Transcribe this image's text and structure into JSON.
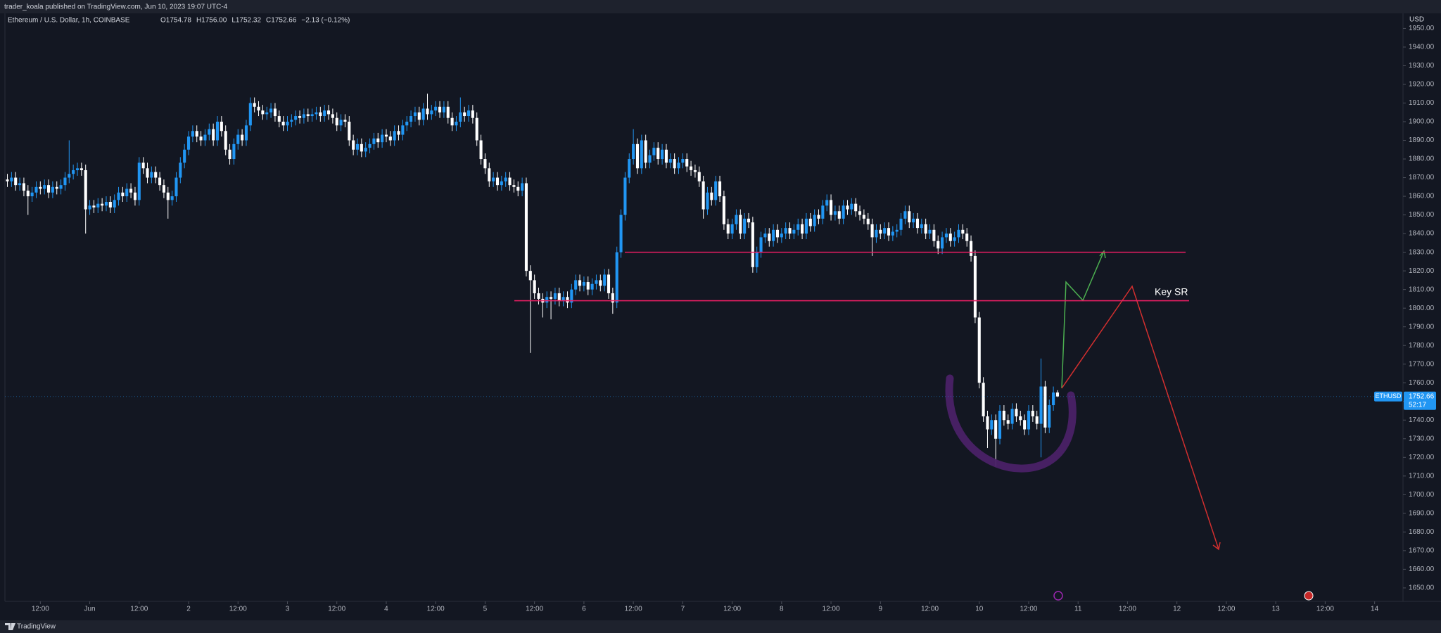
{
  "header": {
    "publisher": "trader_koala published on TradingView.com, Jun 10, 2023 19:07 UTC-4"
  },
  "footer": {
    "brand": "TradingView"
  },
  "chart_data": {
    "type": "candlestick",
    "title": "Ethereum / U.S. Dollar, 1h, COINBASE",
    "ohlc_legend": [
      "O1754.78",
      "H1756.00",
      "L1752.32",
      "C1752.66",
      "−2.13 (−0.12%)"
    ],
    "currency": "USD",
    "symbol": "ETHUSD",
    "last_price": 1752.66,
    "countdown": "52:17",
    "annotation": "Key SR",
    "levels": [
      1830,
      1804
    ],
    "level_color": "#e91e63",
    "up_color": "#2196f3",
    "down_color": "#ffffff",
    "x": [
      3,
      4,
      5,
      6,
      7,
      8,
      9,
      10,
      11,
      12,
      13,
      14,
      15,
      16,
      17,
      18,
      19,
      20,
      21,
      22,
      23,
      24,
      25,
      26,
      27,
      28,
      29,
      30,
      31,
      32,
      33,
      34,
      35,
      36,
      37,
      38,
      39,
      40,
      41,
      42,
      43,
      44,
      45,
      46,
      47,
      48,
      49,
      50,
      51,
      52,
      53,
      54,
      55,
      56,
      57,
      58,
      59,
      60,
      61,
      62,
      63,
      64,
      65,
      66,
      67,
      68,
      69,
      70,
      71,
      72,
      73,
      74,
      75,
      76,
      77,
      78,
      79,
      80,
      81,
      82,
      83,
      84,
      85,
      86,
      87,
      88,
      89,
      90,
      91,
      92,
      93,
      94,
      95,
      96,
      97,
      98,
      99,
      100,
      101,
      102,
      103,
      104,
      105,
      106,
      107,
      108,
      109,
      110,
      111,
      112,
      113,
      114,
      115,
      116,
      117,
      118,
      119,
      120,
      121,
      122,
      123,
      124,
      125,
      126,
      127,
      128,
      129,
      130,
      131,
      132,
      133,
      134,
      135,
      136,
      137,
      138,
      139,
      140,
      141,
      142,
      143,
      144,
      145,
      146,
      147,
      148,
      149,
      150,
      151,
      152,
      153,
      154,
      155,
      156,
      157,
      158,
      159,
      160,
      161,
      162,
      163,
      164,
      165,
      166,
      167,
      168,
      169,
      170,
      171,
      172,
      173,
      174,
      175,
      176,
      177,
      178,
      179,
      180,
      181,
      182,
      183,
      184,
      185,
      186,
      187,
      188,
      189,
      190,
      191,
      192,
      193,
      194,
      195,
      196,
      197,
      198,
      199,
      200,
      201,
      202,
      203,
      204,
      205,
      206,
      207,
      208,
      209,
      210,
      211,
      212,
      213,
      214,
      215,
      216,
      217,
      218,
      219,
      220,
      221,
      222,
      223,
      224,
      225,
      226,
      227,
      228,
      229,
      230,
      231,
      232,
      233,
      234,
      235,
      236,
      237,
      238,
      239,
      240,
      241,
      242,
      243,
      244,
      245,
      246,
      247,
      248,
      249,
      250,
      251,
      252,
      253,
      254,
      255,
      256,
      257,
      258,
      259
    ],
    "open": [
      1870,
      1869,
      1868,
      1870,
      1866,
      1867,
      1863,
      1860,
      1862,
      1865,
      1864,
      1866,
      1862,
      1865,
      1864,
      1866,
      1870,
      1872,
      1874,
      1875,
      1874,
      1853,
      1855,
      1854,
      1856,
      1855,
      1857,
      1854,
      1858,
      1862,
      1860,
      1864,
      1862,
      1858,
      1878,
      1875,
      1870,
      1873,
      1870,
      1866,
      1862,
      1858,
      1860,
      1870,
      1878,
      1885,
      1892,
      1895,
      1892,
      1890,
      1893,
      1896,
      1890,
      1900,
      1895,
      1885,
      1880,
      1888,
      1893,
      1890,
      1898,
      1910,
      1908,
      1906,
      1904,
      1905,
      1907,
      1903,
      1900,
      1898,
      1900,
      1901,
      1903,
      1902,
      1904,
      1903,
      1904,
      1905,
      1903,
      1906,
      1904,
      1902,
      1898,
      1901,
      1900,
      1890,
      1885,
      1888,
      1884,
      1886,
      1888,
      1891,
      1889,
      1893,
      1892,
      1890,
      1895,
      1893,
      1898,
      1900,
      1903,
      1905,
      1901,
      1907,
      1904,
      1906,
      1908,
      1905,
      1908,
      1902,
      1898,
      1900,
      1905,
      1903,
      1906,
      1902,
      1890,
      1880,
      1875,
      1868,
      1870,
      1866,
      1868,
      1870,
      1866,
      1865,
      1863,
      1867,
      1820,
      1815,
      1808,
      1805,
      1803,
      1806,
      1805,
      1808,
      1804,
      1806,
      1803,
      1810,
      1815,
      1812,
      1814,
      1810,
      1813,
      1815,
      1812,
      1818,
      1808,
      1803,
      1830,
      1850,
      1870,
      1880,
      1888,
      1875,
      1890,
      1878,
      1882,
      1886,
      1880,
      1885,
      1878,
      1880,
      1875,
      1878,
      1880,
      1876,
      1874,
      1873,
      1868,
      1853,
      1862,
      1858,
      1868,
      1860,
      1845,
      1840,
      1845,
      1850,
      1840,
      1848,
      1846,
      1822,
      1830,
      1838,
      1840,
      1836,
      1842,
      1838,
      1840,
      1843,
      1840,
      1842,
      1845,
      1840,
      1848,
      1844,
      1850,
      1848,
      1855,
      1858,
      1850,
      1852,
      1848,
      1855,
      1853,
      1856,
      1852,
      1850,
      1848,
      1845,
      1838,
      1842,
      1840,
      1843,
      1839,
      1841,
      1842,
      1848,
      1852,
      1846,
      1848,
      1843,
      1845,
      1840,
      1842,
      1836,
      1832,
      1838,
      1840,
      1836,
      1838,
      1842,
      1840,
      1836,
      1828,
      1795,
      1760,
      1742,
      1735,
      1740,
      1730,
      1745,
      1740,
      1738,
      1746,
      1742,
      1740,
      1735,
      1745,
      1742,
      1738,
      1758,
      1736,
      1748,
      1754.78
    ],
    "high": [
      1873,
      1872,
      1873,
      1873,
      1870,
      1870,
      1866,
      1865,
      1868,
      1868,
      1869,
      1869,
      1868,
      1868,
      1869,
      1873,
      1890,
      1877,
      1878,
      1878,
      1877,
      1858,
      1858,
      1859,
      1859,
      1860,
      1860,
      1861,
      1865,
      1865,
      1867,
      1867,
      1865,
      1881,
      1881,
      1878,
      1876,
      1876,
      1873,
      1869,
      1865,
      1863,
      1873,
      1881,
      1888,
      1895,
      1898,
      1898,
      1895,
      1896,
      1899,
      1899,
      1903,
      1903,
      1898,
      1888,
      1891,
      1896,
      1896,
      1901,
      1913,
      1913,
      1911,
      1909,
      1908,
      1910,
      1910,
      1906,
      1903,
      1903,
      1904,
      1906,
      1906,
      1907,
      1907,
      1907,
      1908,
      1908,
      1909,
      1909,
      1907,
      1905,
      1904,
      1904,
      1903,
      1893,
      1891,
      1891,
      1889,
      1891,
      1894,
      1894,
      1896,
      1896,
      1895,
      1898,
      1898,
      1901,
      1903,
      1906,
      1908,
      1908,
      1910,
      1915,
      1909,
      1911,
      1911,
      1911,
      1911,
      1905,
      1903,
      1913,
      1908,
      1909,
      1909,
      1905,
      1893,
      1883,
      1878,
      1873,
      1873,
      1871,
      1873,
      1873,
      1869,
      1868,
      1870,
      1870,
      1823,
      1818,
      1811,
      1808,
      1809,
      1809,
      1811,
      1811,
      1809,
      1809,
      1813,
      1818,
      1818,
      1817,
      1817,
      1816,
      1818,
      1818,
      1821,
      1821,
      1811,
      1833,
      1853,
      1873,
      1883,
      1896,
      1891,
      1893,
      1893,
      1885,
      1889,
      1889,
      1888,
      1888,
      1883,
      1883,
      1881,
      1883,
      1883,
      1879,
      1877,
      1876,
      1871,
      1865,
      1865,
      1871,
      1871,
      1863,
      1848,
      1848,
      1853,
      1853,
      1851,
      1851,
      1849,
      1833,
      1841,
      1843,
      1843,
      1845,
      1845,
      1843,
      1846,
      1846,
      1845,
      1848,
      1848,
      1851,
      1851,
      1853,
      1853,
      1858,
      1861,
      1861,
      1855,
      1855,
      1858,
      1858,
      1859,
      1859,
      1855,
      1853,
      1851,
      1848,
      1845,
      1845,
      1846,
      1846,
      1844,
      1845,
      1851,
      1855,
      1855,
      1851,
      1851,
      1848,
      1848,
      1845,
      1845,
      1839,
      1841,
      1843,
      1843,
      1841,
      1845,
      1845,
      1843,
      1839,
      1831,
      1798,
      1763,
      1745,
      1743,
      1743,
      1748,
      1748,
      1743,
      1749,
      1749,
      1745,
      1743,
      1748,
      1748,
      1745,
      1773,
      1761,
      1751,
      1758,
      1756
    ],
    "low": [
      1866,
      1865,
      1865,
      1863,
      1863,
      1860,
      1850,
      1857,
      1859,
      1861,
      1861,
      1859,
      1859,
      1861,
      1861,
      1863,
      1867,
      1869,
      1871,
      1871,
      1840,
      1850,
      1851,
      1851,
      1852,
      1852,
      1851,
      1851,
      1855,
      1857,
      1857,
      1859,
      1855,
      1855,
      1872,
      1867,
      1867,
      1867,
      1863,
      1859,
      1848,
      1855,
      1857,
      1867,
      1875,
      1882,
      1889,
      1889,
      1887,
      1887,
      1890,
      1887,
      1887,
      1892,
      1882,
      1877,
      1877,
      1885,
      1887,
      1887,
      1895,
      1905,
      1903,
      1901,
      1901,
      1902,
      1900,
      1897,
      1895,
      1895,
      1897,
      1898,
      1899,
      1899,
      1900,
      1900,
      1901,
      1900,
      1900,
      1901,
      1899,
      1895,
      1895,
      1897,
      1887,
      1882,
      1882,
      1881,
      1881,
      1883,
      1885,
      1886,
      1886,
      1889,
      1887,
      1887,
      1890,
      1890,
      1895,
      1897,
      1900,
      1898,
      1898,
      1901,
      1901,
      1903,
      1902,
      1902,
      1899,
      1895,
      1895,
      1897,
      1900,
      1900,
      1899,
      1887,
      1877,
      1872,
      1865,
      1865,
      1863,
      1863,
      1865,
      1863,
      1862,
      1860,
      1860,
      1817,
      1776,
      1805,
      1802,
      1795,
      1800,
      1794,
      1802,
      1801,
      1801,
      1800,
      1800,
      1807,
      1809,
      1809,
      1807,
      1807,
      1810,
      1809,
      1809,
      1805,
      1797,
      1800,
      1827,
      1847,
      1867,
      1877,
      1872,
      1872,
      1875,
      1875,
      1879,
      1877,
      1877,
      1875,
      1875,
      1872,
      1872,
      1875,
      1873,
      1871,
      1870,
      1865,
      1848,
      1850,
      1855,
      1855,
      1857,
      1842,
      1837,
      1837,
      1842,
      1837,
      1837,
      1843,
      1819,
      1819,
      1827,
      1835,
      1833,
      1833,
      1835,
      1835,
      1837,
      1837,
      1837,
      1839,
      1837,
      1837,
      1841,
      1841,
      1845,
      1845,
      1852,
      1847,
      1847,
      1845,
      1845,
      1850,
      1850,
      1849,
      1847,
      1845,
      1842,
      1828,
      1835,
      1837,
      1837,
      1836,
      1836,
      1838,
      1839,
      1845,
      1843,
      1843,
      1840,
      1840,
      1837,
      1837,
      1833,
      1829,
      1829,
      1835,
      1833,
      1833,
      1835,
      1837,
      1833,
      1825,
      1792,
      1757,
      1739,
      1725,
      1732,
      1715,
      1727,
      1737,
      1735,
      1735,
      1739,
      1737,
      1732,
      1732,
      1739,
      1735,
      1720,
      1733,
      1733,
      1745,
      1752.32
    ],
    "close": [
      1869,
      1868,
      1870,
      1866,
      1867,
      1863,
      1860,
      1862,
      1865,
      1864,
      1866,
      1862,
      1865,
      1864,
      1866,
      1870,
      1872,
      1874,
      1875,
      1874,
      1853,
      1855,
      1854,
      1856,
      1855,
      1857,
      1854,
      1858,
      1862,
      1860,
      1864,
      1862,
      1858,
      1878,
      1875,
      1870,
      1873,
      1870,
      1866,
      1862,
      1858,
      1860,
      1870,
      1878,
      1885,
      1892,
      1895,
      1892,
      1890,
      1893,
      1896,
      1890,
      1900,
      1895,
      1885,
      1880,
      1888,
      1893,
      1890,
      1898,
      1910,
      1908,
      1906,
      1904,
      1905,
      1907,
      1903,
      1900,
      1898,
      1900,
      1901,
      1903,
      1902,
      1904,
      1903,
      1904,
      1905,
      1903,
      1906,
      1904,
      1902,
      1898,
      1901,
      1900,
      1890,
      1885,
      1888,
      1884,
      1886,
      1888,
      1891,
      1889,
      1893,
      1892,
      1890,
      1895,
      1893,
      1898,
      1900,
      1903,
      1905,
      1901,
      1907,
      1904,
      1906,
      1908,
      1905,
      1908,
      1902,
      1898,
      1900,
      1905,
      1903,
      1906,
      1902,
      1890,
      1880,
      1875,
      1868,
      1870,
      1866,
      1868,
      1870,
      1866,
      1865,
      1863,
      1867,
      1820,
      1815,
      1808,
      1805,
      1803,
      1806,
      1805,
      1808,
      1804,
      1806,
      1803,
      1810,
      1815,
      1812,
      1814,
      1810,
      1813,
      1815,
      1812,
      1818,
      1808,
      1803,
      1830,
      1850,
      1870,
      1880,
      1888,
      1875,
      1890,
      1878,
      1882,
      1886,
      1880,
      1885,
      1878,
      1880,
      1875,
      1878,
      1880,
      1876,
      1874,
      1873,
      1868,
      1853,
      1862,
      1858,
      1868,
      1860,
      1845,
      1840,
      1845,
      1850,
      1840,
      1848,
      1846,
      1822,
      1830,
      1838,
      1840,
      1836,
      1842,
      1838,
      1840,
      1843,
      1840,
      1842,
      1845,
      1840,
      1848,
      1844,
      1850,
      1848,
      1855,
      1858,
      1850,
      1852,
      1848,
      1855,
      1853,
      1856,
      1852,
      1850,
      1848,
      1845,
      1838,
      1842,
      1840,
      1843,
      1839,
      1841,
      1842,
      1848,
      1852,
      1846,
      1848,
      1843,
      1845,
      1840,
      1842,
      1836,
      1832,
      1838,
      1840,
      1836,
      1838,
      1842,
      1840,
      1836,
      1828,
      1795,
      1760,
      1742,
      1735,
      1740,
      1730,
      1745,
      1740,
      1738,
      1746,
      1742,
      1740,
      1735,
      1745,
      1742,
      1738,
      1758,
      1736,
      1748,
      1754.78,
      1752.66
    ],
    "xlim": [
      3.4,
      342.9
    ],
    "xticks": [
      {
        "value": 12,
        "label": "12:00"
      },
      {
        "value": 24,
        "label": "Jun"
      },
      {
        "value": 36,
        "label": "12:00"
      },
      {
        "value": 48,
        "label": "2"
      },
      {
        "value": 60,
        "label": "12:00"
      },
      {
        "value": 72,
        "label": "3"
      },
      {
        "value": 84,
        "label": "12:00"
      },
      {
        "value": 96,
        "label": "4"
      },
      {
        "value": 108,
        "label": "12:00"
      },
      {
        "value": 120,
        "label": "5"
      },
      {
        "value": 132,
        "label": "12:00"
      },
      {
        "value": 144,
        "label": "6"
      },
      {
        "value": 156,
        "label": "12:00"
      },
      {
        "value": 168,
        "label": "7"
      },
      {
        "value": 180,
        "label": "12:00"
      },
      {
        "value": 192,
        "label": "8"
      },
      {
        "value": 204,
        "label": "12:00"
      },
      {
        "value": 216,
        "label": "9"
      },
      {
        "value": 228,
        "label": "12:00"
      },
      {
        "value": 240,
        "label": "10"
      },
      {
        "value": 252,
        "label": "12:00"
      },
      {
        "value": 264,
        "label": "11"
      },
      {
        "value": 276,
        "label": "12:00"
      },
      {
        "value": 288,
        "label": "12"
      },
      {
        "value": 300,
        "label": "12:00"
      },
      {
        "value": 312,
        "label": "13"
      },
      {
        "value": 324,
        "label": "12:00"
      },
      {
        "value": 336,
        "label": "14"
      }
    ],
    "ylim": [
      1642.8,
      1957.7
    ],
    "yticks": [
      {
        "value": 1650,
        "label": "1650.00"
      },
      {
        "value": 1660,
        "label": "1660.00"
      },
      {
        "value": 1670,
        "label": "1670.00"
      },
      {
        "value": 1680,
        "label": "1680.00"
      },
      {
        "value": 1690,
        "label": "1690.00"
      },
      {
        "value": 1700,
        "label": "1700.00"
      },
      {
        "value": 1710,
        "label": "1710.00"
      },
      {
        "value": 1720,
        "label": "1720.00"
      },
      {
        "value": 1730,
        "label": "1730.00"
      },
      {
        "value": 1740,
        "label": "1740.00"
      },
      {
        "value": 1750,
        "label": "1750.00"
      },
      {
        "value": 1760,
        "label": "1760.00"
      },
      {
        "value": 1770,
        "label": "1770.00"
      },
      {
        "value": 1780,
        "label": "1780.00"
      },
      {
        "value": 1790,
        "label": "1790.00"
      },
      {
        "value": 1800,
        "label": "1800.00"
      },
      {
        "value": 1810,
        "label": "1810.00"
      },
      {
        "value": 1820,
        "label": "1820.00"
      },
      {
        "value": 1830,
        "label": "1830.00"
      },
      {
        "value": 1840,
        "label": "1840.00"
      },
      {
        "value": 1850,
        "label": "1850.00"
      },
      {
        "value": 1860,
        "label": "1860.00"
      },
      {
        "value": 1870,
        "label": "1870.00"
      },
      {
        "value": 1880,
        "label": "1880.00"
      },
      {
        "value": 1890,
        "label": "1890.00"
      },
      {
        "value": 1900,
        "label": "1900.00"
      },
      {
        "value": 1910,
        "label": "1910.00"
      },
      {
        "value": 1920,
        "label": "1920.00"
      },
      {
        "value": 1930,
        "label": "1930.00"
      },
      {
        "value": 1940,
        "label": "1940.00"
      },
      {
        "value": 1950,
        "label": "1950.00"
      }
    ]
  }
}
